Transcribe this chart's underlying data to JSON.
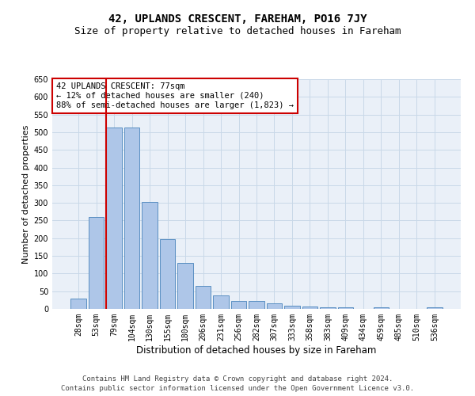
{
  "title": "42, UPLANDS CRESCENT, FAREHAM, PO16 7JY",
  "subtitle": "Size of property relative to detached houses in Fareham",
  "xlabel": "Distribution of detached houses by size in Fareham",
  "ylabel": "Number of detached properties",
  "categories": [
    "28sqm",
    "53sqm",
    "79sqm",
    "104sqm",
    "130sqm",
    "155sqm",
    "180sqm",
    "206sqm",
    "231sqm",
    "256sqm",
    "282sqm",
    "307sqm",
    "333sqm",
    "358sqm",
    "383sqm",
    "409sqm",
    "434sqm",
    "459sqm",
    "485sqm",
    "510sqm",
    "536sqm"
  ],
  "values": [
    30,
    260,
    513,
    513,
    303,
    197,
    130,
    65,
    37,
    22,
    22,
    15,
    10,
    7,
    5,
    5,
    1,
    5,
    1,
    1,
    5
  ],
  "bar_color": "#aec6e8",
  "bar_edge_color": "#5a8fc2",
  "vline_color": "#cc0000",
  "vline_x_index": 2,
  "annotation_text": "42 UPLANDS CRESCENT: 77sqm\n← 12% of detached houses are smaller (240)\n88% of semi-detached houses are larger (1,823) →",
  "annotation_box_color": "#ffffff",
  "annotation_box_edge_color": "#cc0000",
  "ylim": [
    0,
    650
  ],
  "yticks": [
    0,
    50,
    100,
    150,
    200,
    250,
    300,
    350,
    400,
    450,
    500,
    550,
    600,
    650
  ],
  "grid_color": "#c8d8e8",
  "background_color": "#eaf0f8",
  "footer_text": "Contains HM Land Registry data © Crown copyright and database right 2024.\nContains public sector information licensed under the Open Government Licence v3.0.",
  "title_fontsize": 10,
  "subtitle_fontsize": 9,
  "xlabel_fontsize": 8.5,
  "ylabel_fontsize": 8,
  "tick_fontsize": 7,
  "annotation_fontsize": 7.5,
  "footer_fontsize": 6.5
}
